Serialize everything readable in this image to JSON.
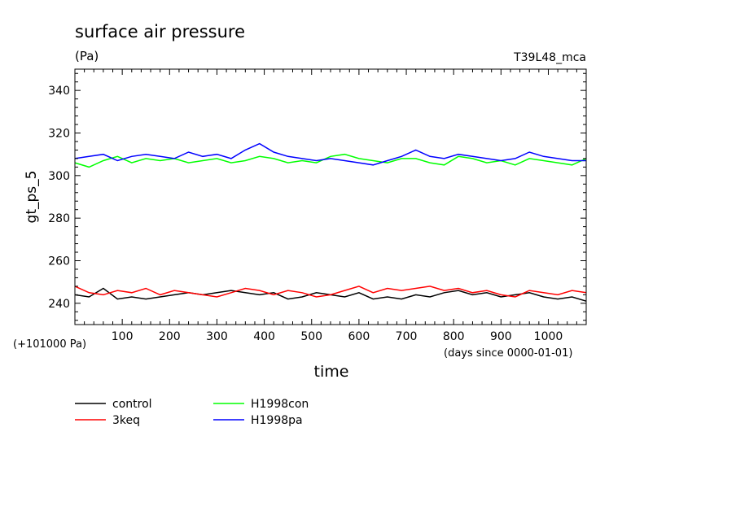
{
  "chart_data": {
    "type": "line",
    "title": "surface air pressure",
    "units": "(Pa)",
    "run_label": "T39L48_mca",
    "xlabel": "time",
    "xlabel_note": "(days since 0000-01-01)",
    "ylabel": "gt_ps_5",
    "yoffset_note": "(+101000 Pa)",
    "xlim": [
      0,
      1080
    ],
    "ylim": [
      230,
      350
    ],
    "xticks": [
      100,
      200,
      300,
      400,
      500,
      600,
      700,
      800,
      900,
      1000
    ],
    "yticks": [
      240,
      260,
      280,
      300,
      320,
      340
    ],
    "grid": false,
    "legend_position": "bottom-left",
    "series": [
      {
        "name": "control",
        "color": "#000000",
        "x": [
          0,
          30,
          60,
          90,
          120,
          150,
          180,
          210,
          240,
          270,
          300,
          330,
          360,
          390,
          420,
          450,
          480,
          510,
          540,
          570,
          600,
          630,
          660,
          690,
          720,
          750,
          780,
          810,
          840,
          870,
          900,
          930,
          960,
          990,
          1020,
          1050,
          1080
        ],
        "values": [
          244,
          243,
          247,
          242,
          243,
          242,
          243,
          244,
          245,
          244,
          245,
          246,
          245,
          244,
          245,
          242,
          243,
          245,
          244,
          243,
          245,
          242,
          243,
          242,
          244,
          243,
          245,
          246,
          244,
          245,
          243,
          244,
          245,
          243,
          242,
          243,
          241
        ]
      },
      {
        "name": "3keq",
        "color": "#ff0000",
        "x": [
          0,
          30,
          60,
          90,
          120,
          150,
          180,
          210,
          240,
          270,
          300,
          330,
          360,
          390,
          420,
          450,
          480,
          510,
          540,
          570,
          600,
          630,
          660,
          690,
          720,
          750,
          780,
          810,
          840,
          870,
          900,
          930,
          960,
          990,
          1020,
          1050,
          1080
        ],
        "values": [
          248,
          245,
          244,
          246,
          245,
          247,
          244,
          246,
          245,
          244,
          243,
          245,
          247,
          246,
          244,
          246,
          245,
          243,
          244,
          246,
          248,
          245,
          247,
          246,
          247,
          248,
          246,
          247,
          245,
          246,
          244,
          243,
          246,
          245,
          244,
          246,
          245
        ]
      },
      {
        "name": "H1998con",
        "color": "#00ff00",
        "x": [
          0,
          30,
          60,
          90,
          120,
          150,
          180,
          210,
          240,
          270,
          300,
          330,
          360,
          390,
          420,
          450,
          480,
          510,
          540,
          570,
          600,
          630,
          660,
          690,
          720,
          750,
          780,
          810,
          840,
          870,
          900,
          930,
          960,
          990,
          1020,
          1050,
          1080
        ],
        "values": [
          306,
          304,
          307,
          309,
          306,
          308,
          307,
          308,
          306,
          307,
          308,
          306,
          307,
          309,
          308,
          306,
          307,
          306,
          309,
          310,
          308,
          307,
          306,
          308,
          308,
          306,
          305,
          309,
          308,
          306,
          307,
          305,
          308,
          307,
          306,
          305,
          308
        ]
      },
      {
        "name": "H1998pa",
        "color": "#0000ff",
        "x": [
          0,
          30,
          60,
          90,
          120,
          150,
          180,
          210,
          240,
          270,
          300,
          330,
          360,
          390,
          420,
          450,
          480,
          510,
          540,
          570,
          600,
          630,
          660,
          690,
          720,
          750,
          780,
          810,
          840,
          870,
          900,
          930,
          960,
          990,
          1020,
          1050,
          1080
        ],
        "values": [
          308,
          309,
          310,
          307,
          309,
          310,
          309,
          308,
          311,
          309,
          310,
          308,
          312,
          315,
          311,
          309,
          308,
          307,
          308,
          307,
          306,
          305,
          307,
          309,
          312,
          309,
          308,
          310,
          309,
          308,
          307,
          308,
          311,
          309,
          308,
          307,
          307
        ]
      }
    ]
  }
}
